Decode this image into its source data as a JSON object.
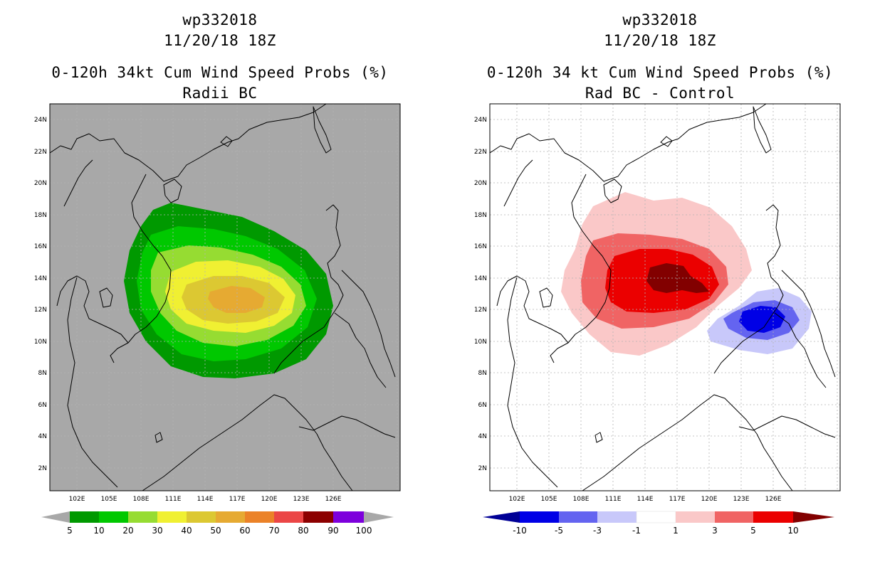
{
  "panels": [
    {
      "id": "left",
      "title": {
        "storm_id": "wp332018",
        "datetime": "11/20/18 18Z",
        "product": "0-120h 34kt Cum Wind Speed Probs (%)",
        "subtitle": "Radii BC"
      },
      "colorbar": {
        "labels": [
          "5",
          "10",
          "20",
          "30",
          "40",
          "50",
          "60",
          "70",
          "80",
          "90",
          "100"
        ],
        "colors": [
          "#009900",
          "#00c800",
          "#96dc32",
          "#f0f032",
          "#dcc832",
          "#e6aa32",
          "#eb8228",
          "#eb4646",
          "#8c0000",
          "#7d00dc"
        ],
        "end_color": "#a8a8a8"
      }
    },
    {
      "id": "right",
      "title": {
        "storm_id": "wp332018",
        "datetime": "11/20/18 18Z",
        "product": "0-120h 34 kt Cum Wind Speed Probs (%)",
        "subtitle": "Rad BC - Control"
      },
      "colorbar": {
        "labels": [
          "-10",
          "-5",
          "-3",
          "-1",
          "1",
          "3",
          "5",
          "10"
        ],
        "colors": [
          "#0000e6",
          "#6464f0",
          "#c8c8fa",
          "#ffffff",
          "#fac8c8",
          "#f06464",
          "#eb0000"
        ],
        "low_end_color": "#000096",
        "high_end_color": "#820000"
      }
    }
  ],
  "axes": {
    "lat_labels": [
      "2N",
      "4N",
      "6N",
      "8N",
      "10N",
      "12N",
      "14N",
      "16N",
      "18N",
      "20N",
      "22N",
      "24N"
    ],
    "lon_labels": [
      "102E",
      "105E",
      "108E",
      "111E",
      "114E",
      "117E",
      "120E",
      "123E",
      "126E"
    ]
  },
  "colors": {
    "left_background": "#a8a8a8",
    "right_background": "#ffffff",
    "coast": "#000000",
    "grid": "#b4b4b4"
  }
}
